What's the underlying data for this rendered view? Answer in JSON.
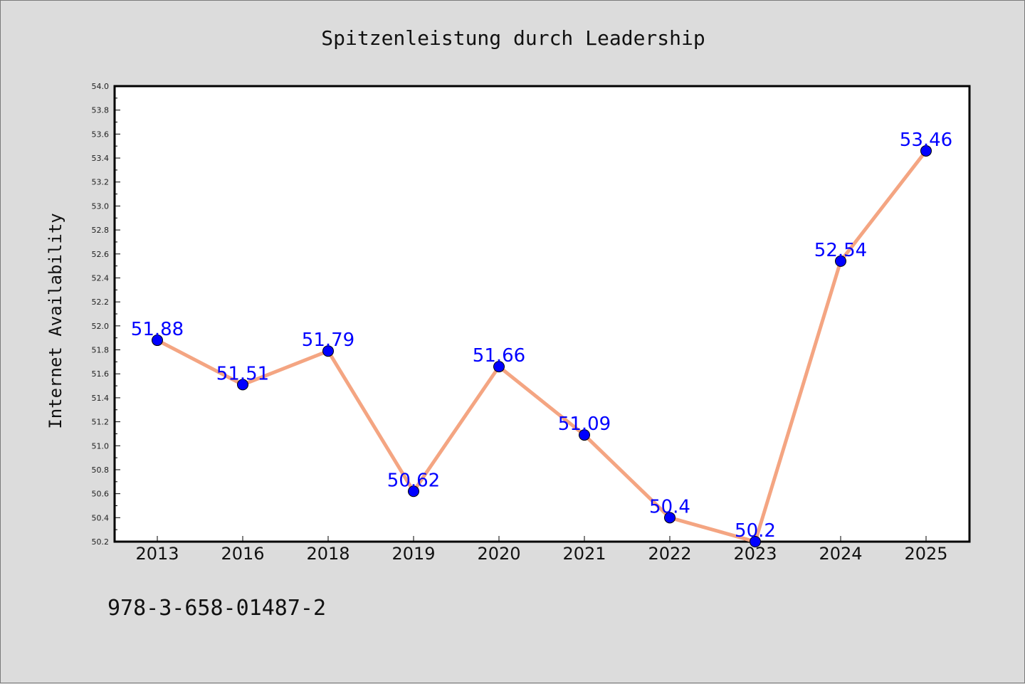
{
  "chart_data": {
    "type": "line",
    "title": "Spitzenleistung durch Leadership",
    "xlabel": "",
    "ylabel": "Internet Availability",
    "categories": [
      "2013",
      "2016",
      "2018",
      "2019",
      "2020",
      "2021",
      "2022",
      "2023",
      "2024",
      "2025"
    ],
    "series": [
      {
        "values": [
          51.88,
          51.51,
          51.79,
          50.62,
          51.66,
          51.09,
          50.4,
          50.2,
          52.54,
          53.46
        ],
        "labels": [
          "51.88",
          "51.51",
          "51.79",
          "50.62",
          "51.66",
          "51.09",
          "50.4",
          "50.2",
          "52.54",
          "53.46"
        ]
      }
    ],
    "ylim": [
      50.2,
      54.0
    ],
    "yticks": [
      "50.2",
      "50.4",
      "50.6",
      "50.8",
      "51.0",
      "51.2",
      "51.4",
      "51.6",
      "51.8",
      "52.0",
      "52.2",
      "52.4",
      "52.6",
      "52.8",
      "53.0",
      "53.2",
      "53.4",
      "53.6",
      "53.8",
      "54.0"
    ],
    "grid": false,
    "legend": "none",
    "line_color": "#f4a582",
    "marker_color": "#0000ff",
    "label_color": "#0000ff"
  },
  "footer": {
    "code": "978-3-658-01487-2"
  }
}
